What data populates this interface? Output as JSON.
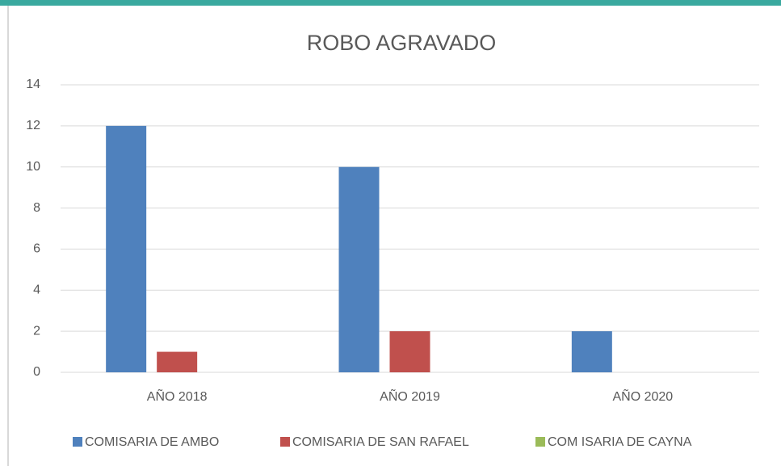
{
  "chart_data": {
    "type": "bar",
    "title": "ROBO AGRAVADO",
    "categories": [
      "AÑO 2018",
      "AÑO 2019",
      "AÑO 2020"
    ],
    "series": [
      {
        "name": "COMISARIA DE AMBO",
        "color": "#4f81bd",
        "values": [
          12,
          10,
          2
        ]
      },
      {
        "name": "COMISARIA DE SAN RAFAEL",
        "color": "#c0504d",
        "values": [
          1,
          2,
          0
        ]
      },
      {
        "name": "COM ISARIA DE CAYNA",
        "color": "#9bbb59",
        "values": [
          0,
          0,
          0
        ]
      }
    ],
    "ylim": [
      0,
      14
    ],
    "yticks": [
      0,
      2,
      4,
      6,
      8,
      10,
      12,
      14
    ],
    "grid": true,
    "legend": "bottom"
  }
}
